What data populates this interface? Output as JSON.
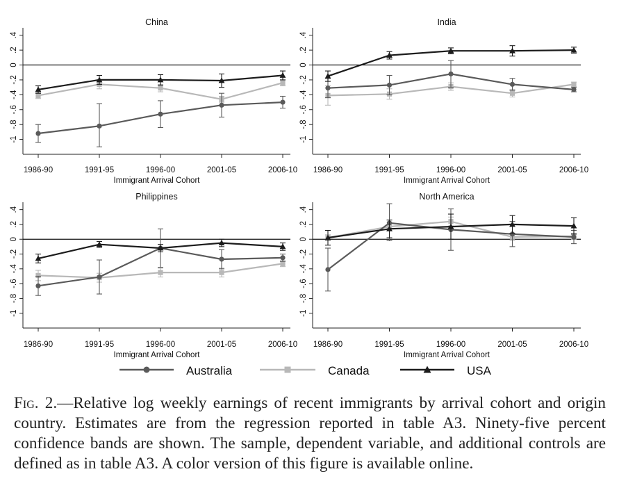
{
  "chart_data": [
    {
      "type": "line",
      "title": "China",
      "xlabel": "Immigrant Arrival Cohort",
      "ylabel": "",
      "categories": [
        "1986-90",
        "1991-95",
        "1996-00",
        "2001-05",
        "2006-10"
      ],
      "ylim": [
        -1.2,
        0.5
      ],
      "yticks": [
        ".4",
        ".2",
        "0",
        "-.2",
        "-.4",
        "-.6",
        "-.8",
        "-1"
      ],
      "series": [
        {
          "name": "Australia",
          "values": [
            -0.92,
            -0.82,
            -0.66,
            -0.54,
            -0.5
          ],
          "ci_low": [
            -1.04,
            -1.1,
            -0.84,
            -0.7,
            -0.58
          ],
          "ci_high": [
            -0.8,
            -0.52,
            -0.48,
            -0.38,
            -0.42
          ]
        },
        {
          "name": "Canada",
          "values": [
            -0.41,
            -0.26,
            -0.31,
            -0.46,
            -0.24
          ],
          "ci_low": [
            -0.45,
            -0.32,
            -0.36,
            -0.5,
            -0.28
          ],
          "ci_high": [
            -0.37,
            -0.2,
            -0.26,
            -0.42,
            -0.2
          ]
        },
        {
          "name": "USA",
          "values": [
            -0.33,
            -0.2,
            -0.2,
            -0.21,
            -0.14
          ],
          "ci_low": [
            -0.38,
            -0.26,
            -0.27,
            -0.3,
            -0.2
          ],
          "ci_high": [
            -0.28,
            -0.14,
            -0.13,
            -0.12,
            -0.08
          ]
        }
      ]
    },
    {
      "type": "line",
      "title": "India",
      "xlabel": "Immigrant Arrival Cohort",
      "ylabel": "",
      "categories": [
        "1986-90",
        "1991-95",
        "1996-00",
        "2001-05",
        "2006-10"
      ],
      "ylim": [
        -1.2,
        0.5
      ],
      "yticks": [
        ".4",
        ".2",
        "0",
        "-.2",
        "-.4",
        "-.6",
        "-.8",
        "-1"
      ],
      "series": [
        {
          "name": "Australia",
          "values": [
            -0.31,
            -0.27,
            -0.12,
            -0.26,
            -0.33
          ],
          "ci_low": [
            -0.44,
            -0.4,
            -0.3,
            -0.34,
            -0.36
          ],
          "ci_high": [
            -0.18,
            -0.14,
            0.06,
            -0.18,
            -0.3
          ]
        },
        {
          "name": "Canada",
          "values": [
            -0.41,
            -0.39,
            -0.29,
            -0.38,
            -0.26
          ],
          "ci_low": [
            -0.54,
            -0.46,
            -0.34,
            -0.43,
            -0.29
          ],
          "ci_high": [
            -0.28,
            -0.32,
            -0.24,
            -0.33,
            -0.23
          ]
        },
        {
          "name": "USA",
          "values": [
            -0.15,
            0.13,
            0.19,
            0.19,
            0.2
          ],
          "ci_low": [
            -0.22,
            0.08,
            0.15,
            0.12,
            0.16
          ],
          "ci_high": [
            -0.08,
            0.18,
            0.23,
            0.26,
            0.24
          ]
        }
      ]
    },
    {
      "type": "line",
      "title": "Philippines",
      "xlabel": "Immigrant Arrival Cohort",
      "ylabel": "",
      "categories": [
        "1986-90",
        "1991-95",
        "1996-00",
        "2001-05",
        "2006-10"
      ],
      "ylim": [
        -1.2,
        0.5
      ],
      "yticks": [
        ".4",
        ".2",
        "0",
        "-.2",
        "-.4",
        "-.6",
        "-.8",
        "-1"
      ],
      "series": [
        {
          "name": "Australia",
          "values": [
            -0.63,
            -0.51,
            -0.12,
            -0.27,
            -0.25
          ],
          "ci_low": [
            -0.76,
            -0.74,
            -0.38,
            -0.4,
            -0.3
          ],
          "ci_high": [
            -0.5,
            -0.28,
            0.14,
            -0.14,
            -0.2
          ]
        },
        {
          "name": "Canada",
          "values": [
            -0.49,
            -0.52,
            -0.45,
            -0.45,
            -0.33
          ],
          "ci_low": [
            -0.56,
            -0.58,
            -0.51,
            -0.51,
            -0.37
          ],
          "ci_high": [
            -0.42,
            -0.46,
            -0.39,
            -0.39,
            -0.29
          ]
        },
        {
          "name": "USA",
          "values": [
            -0.26,
            -0.07,
            -0.12,
            -0.05,
            -0.1
          ],
          "ci_low": [
            -0.32,
            -0.11,
            -0.17,
            -0.1,
            -0.15
          ],
          "ci_high": [
            -0.2,
            -0.03,
            -0.07,
            0.0,
            -0.05
          ]
        }
      ]
    },
    {
      "type": "line",
      "title": "North America",
      "xlabel": "Immigrant Arrival Cohort",
      "ylabel": "",
      "categories": [
        "1986-90",
        "1991-95",
        "1996-00",
        "2001-05",
        "2006-10"
      ],
      "ylim": [
        -1.2,
        0.5
      ],
      "yticks": [
        ".4",
        ".2",
        "0",
        "-.2",
        "-.4",
        "-.6",
        "-.8",
        "-1"
      ],
      "series": [
        {
          "name": "Australia",
          "values": [
            -0.41,
            0.22,
            0.13,
            0.07,
            0.03
          ],
          "ci_low": [
            -0.7,
            -0.02,
            -0.15,
            -0.1,
            -0.06
          ],
          "ci_high": [
            -0.12,
            0.48,
            0.41,
            0.24,
            0.12
          ]
        },
        {
          "name": "Canada",
          "values": [
            0.02,
            0.17,
            0.24,
            0.03,
            0.04
          ],
          "ci_low": [
            -0.02,
            0.12,
            0.18,
            -0.02,
            0.0
          ],
          "ci_high": [
            0.06,
            0.22,
            0.3,
            0.08,
            0.08
          ]
        },
        {
          "name": "USA",
          "values": [
            0.02,
            0.14,
            0.17,
            0.2,
            0.18
          ],
          "ci_low": [
            -0.08,
            0.02,
            0.0,
            0.08,
            0.07
          ],
          "ci_high": [
            0.12,
            0.26,
            0.34,
            0.32,
            0.29
          ]
        }
      ]
    }
  ],
  "legend": [
    {
      "name": "Australia",
      "color": "#5a5a5a",
      "marker": "circle"
    },
    {
      "name": "Canada",
      "color": "#b8b8b8",
      "marker": "square"
    },
    {
      "name": "USA",
      "color": "#1c1c1c",
      "marker": "triangle"
    }
  ],
  "caption": {
    "lead": "Fig. 2.",
    "text": "—Relative log weekly earnings of recent immigrants by arrival cohort and origin country. Estimates are from the regression reported in table A3. Ninety-five percent confidence bands are shown. The sample, dependent variable, and additional controls are defined as in table A3. A color version of this figure is available online."
  }
}
